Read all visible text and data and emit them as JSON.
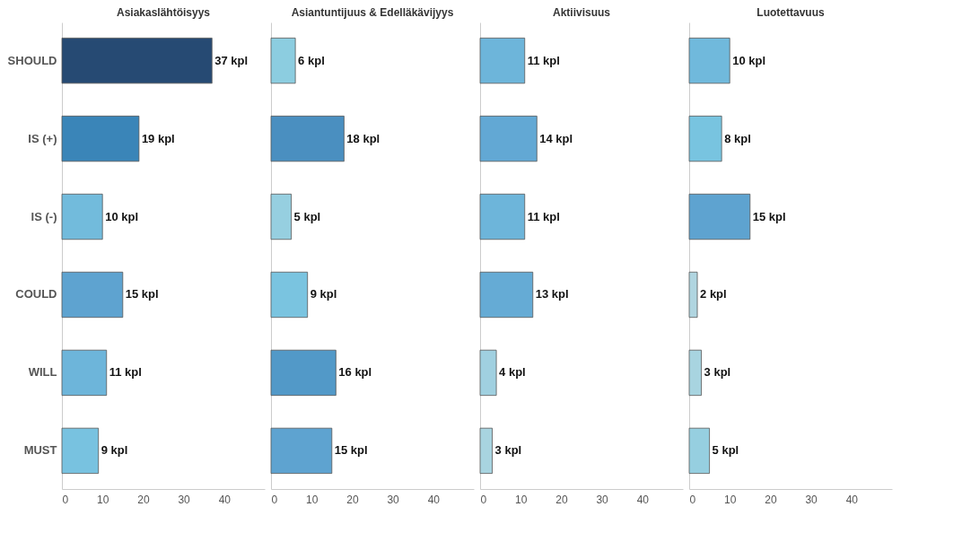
{
  "chart_data": [
    {
      "type": "bar",
      "orientation": "horizontal",
      "title": "Asiakaslähtöisyys",
      "categories": [
        "SHOULD",
        "IS (+)",
        "IS (-)",
        "COULD",
        "WILL",
        "MUST"
      ],
      "values": [
        37,
        19,
        10,
        15,
        11,
        9
      ],
      "value_labels": [
        "37 kpl",
        "19 kpl",
        "10 kpl",
        "15 kpl",
        "11 kpl",
        "9 kpl"
      ],
      "colors": [
        "#264a73",
        "#3a85b8",
        "#72bbdc",
        "#5ea3d0",
        "#6db5da",
        "#78c2e0"
      ],
      "xlim": [
        0,
        50
      ],
      "xticks": [
        0,
        10,
        20,
        30,
        40
      ]
    },
    {
      "type": "bar",
      "orientation": "horizontal",
      "title": "Asiantuntijuus & Edelläkävijyys",
      "categories": [
        "SHOULD",
        "IS (+)",
        "IS (-)",
        "COULD",
        "WILL",
        "MUST"
      ],
      "values": [
        6,
        18,
        5,
        9,
        16,
        15
      ],
      "value_labels": [
        "6 kpl",
        "18 kpl",
        "5 kpl",
        "9 kpl",
        "16 kpl",
        "15 kpl"
      ],
      "colors": [
        "#8ccde0",
        "#4a8fc0",
        "#96cfe0",
        "#7ac4e0",
        "#5299c8",
        "#5ea3d0"
      ],
      "xlim": [
        0,
        50
      ],
      "xticks": [
        0,
        10,
        20,
        30,
        40
      ],
      "tick_labels": "x"
    },
    {
      "type": "bar",
      "orientation": "horizontal",
      "title": "Aktiivisuus",
      "categories": [
        "SHOULD",
        "IS (+)",
        "IS (-)",
        "COULD",
        "WILL",
        "MUST"
      ],
      "values": [
        11,
        14,
        11,
        13,
        4,
        3
      ],
      "value_labels": [
        "11 kpl",
        "14 kpl",
        "11 kpl",
        "13 kpl",
        "4 kpl",
        "3 kpl"
      ],
      "colors": [
        "#6db5da",
        "#62a8d4",
        "#6db5da",
        "#65abd5",
        "#a0d0e0",
        "#a8d4e0"
      ],
      "xlim": [
        0,
        50
      ],
      "xticks": [
        0,
        10,
        20,
        30,
        40
      ],
      "tick_labels": "x"
    },
    {
      "type": "bar",
      "orientation": "horizontal",
      "title": "Luotettavuus",
      "categories": [
        "SHOULD",
        "IS (+)",
        "IS (-)",
        "COULD",
        "WILL",
        "MUST"
      ],
      "values": [
        10,
        8,
        15,
        2,
        3,
        5
      ],
      "value_labels": [
        "10 kpl",
        "8 kpl",
        "15 kpl",
        "2 kpl",
        "3 kpl",
        "5 kpl"
      ],
      "colors": [
        "#70b9dc",
        "#78c4e0",
        "#5ea3d0",
        "#b0d5e0",
        "#a8d4e0",
        "#96cfe0"
      ],
      "xlim": [
        0,
        50
      ],
      "xticks": [
        0,
        10,
        20,
        30,
        40
      ],
      "tick_labels": "x"
    }
  ]
}
